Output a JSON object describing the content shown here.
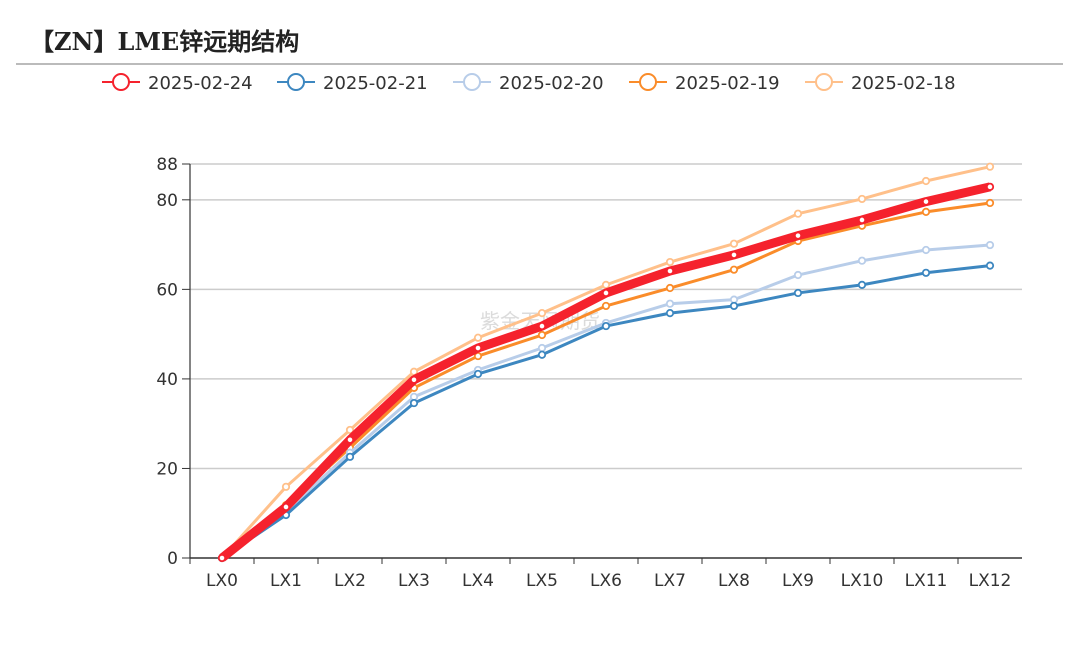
{
  "title": "【ZN】LME锌远期结构",
  "watermark": "紫金天风期货",
  "chart_data": {
    "type": "line",
    "categories": [
      "LX0",
      "LX1",
      "LX2",
      "LX3",
      "LX4",
      "LX5",
      "LX6",
      "LX7",
      "LX8",
      "LX9",
      "LX10",
      "LX11",
      "LX12"
    ],
    "ylim": [
      0,
      88
    ],
    "yticks": [
      0,
      20,
      40,
      60,
      80,
      88
    ],
    "grid": true,
    "legend": "top",
    "series": [
      {
        "name": "2025-02-24",
        "color": "#f5222d",
        "values": [
          0,
          11.4,
          26.4,
          39.8,
          46.9,
          51.8,
          59.2,
          64.1,
          67.7,
          72.0,
          75.5,
          79.6,
          82.9
        ]
      },
      {
        "name": "2025-02-21",
        "color": "#3d87c0",
        "values": [
          0,
          9.6,
          22.6,
          34.6,
          41.1,
          45.4,
          51.8,
          54.7,
          56.3,
          59.2,
          61.0,
          63.7,
          65.3
        ]
      },
      {
        "name": "2025-02-20",
        "color": "#b8cde9",
        "values": [
          0,
          10.5,
          23.5,
          36.0,
          42.0,
          46.9,
          52.5,
          56.8,
          57.7,
          63.2,
          66.4,
          68.8,
          69.9
        ]
      },
      {
        "name": "2025-02-19",
        "color": "#fa8c2a",
        "values": [
          0,
          11.8,
          24.6,
          38.0,
          45.1,
          49.8,
          56.3,
          60.3,
          64.4,
          70.8,
          74.2,
          77.3,
          79.3
        ]
      },
      {
        "name": "2025-02-18",
        "color": "#ffc08a",
        "values": [
          0,
          15.9,
          28.6,
          41.6,
          49.2,
          54.7,
          61.0,
          66.1,
          70.2,
          76.9,
          80.2,
          84.2,
          87.4
        ]
      }
    ]
  }
}
